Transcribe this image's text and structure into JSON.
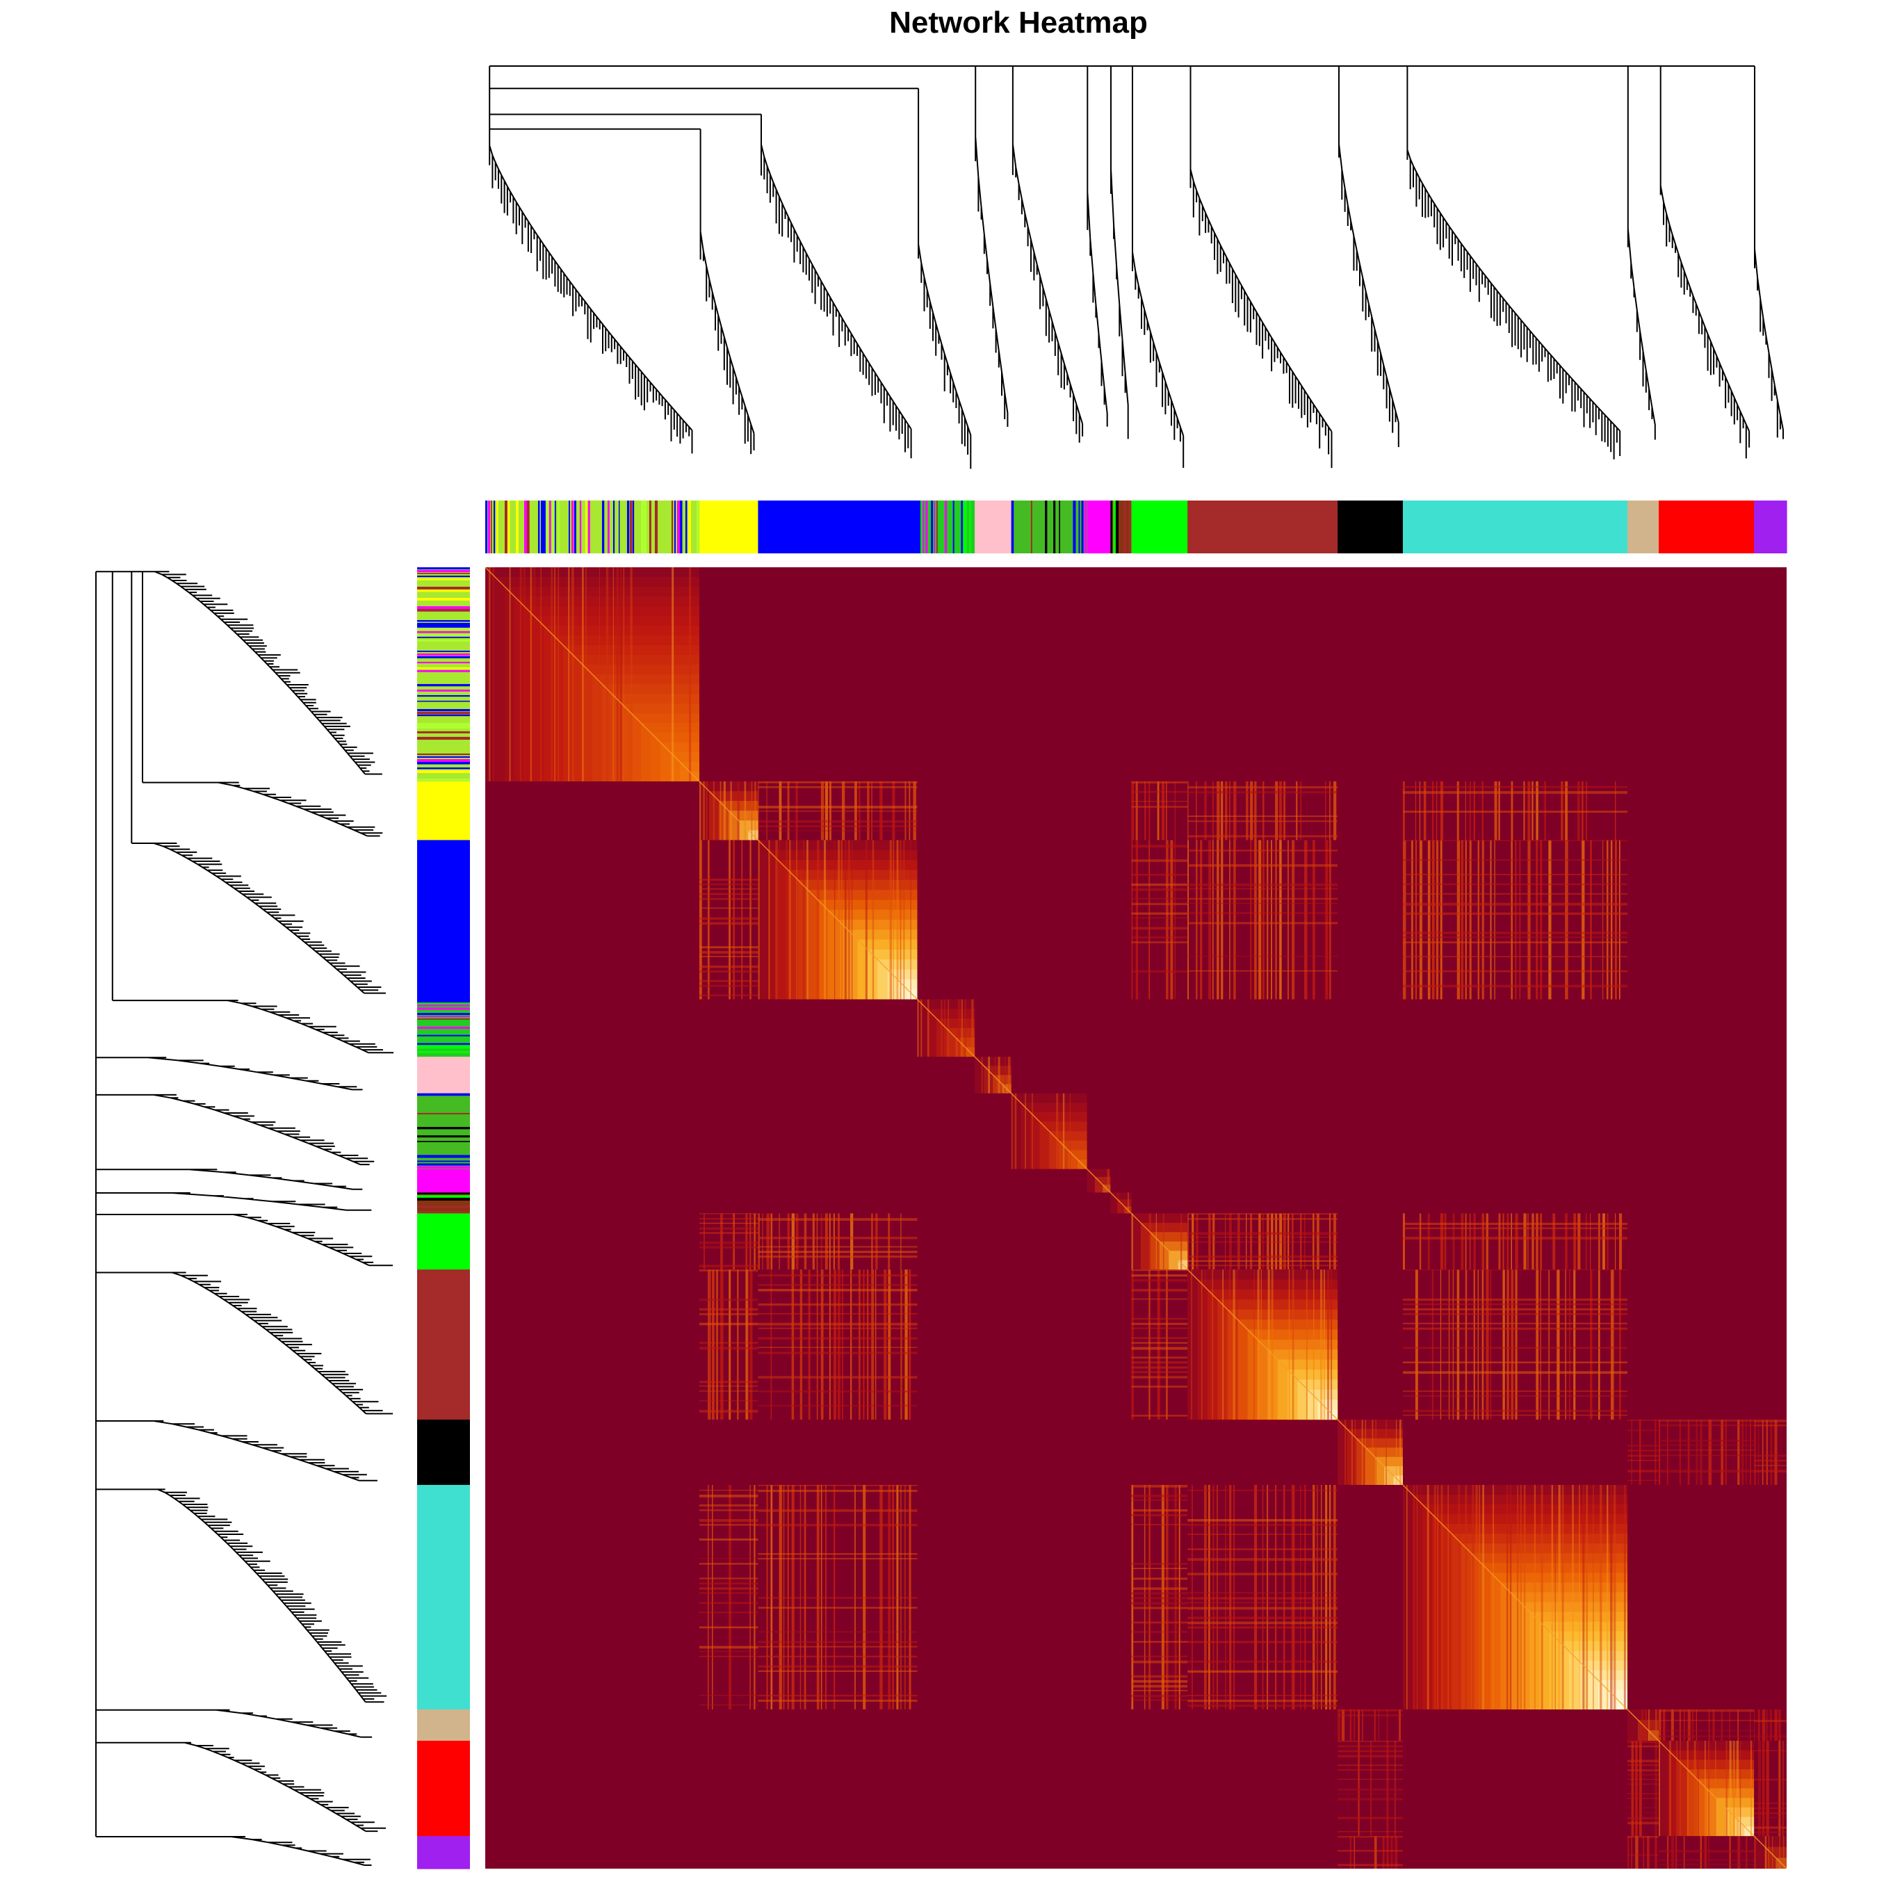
{
  "chart_data": {
    "type": "heatmap",
    "title": "Network Heatmap",
    "xlabel": "",
    "ylabel": "",
    "legend": "none",
    "grid": false,
    "dendrogram_top": true,
    "dendrogram_left": true,
    "color_scale": [
      "#7f0026",
      "#c2170f",
      "#f06b05",
      "#fcc22f",
      "#fffbe0"
    ],
    "modules": [
      {
        "name": "mixed-1",
        "size": 0.164,
        "color": "#a8e830",
        "mixed": [
          "#ffff00",
          "#0000ff",
          "#adff2f",
          "#ff00ff",
          "#a52a2a"
        ]
      },
      {
        "name": "yellow",
        "size": 0.045,
        "color": "#ffff00"
      },
      {
        "name": "blue",
        "size": 0.122,
        "color": "#0000ff"
      },
      {
        "name": "mixed-2",
        "size": 0.044,
        "color": "#22cc22",
        "mixed": [
          "#00ff00",
          "#a52a2a",
          "#0000ff",
          "#ff00ff",
          "#000000"
        ]
      },
      {
        "name": "pink",
        "size": 0.028,
        "color": "#ffc0cb"
      },
      {
        "name": "mixed-3",
        "size": 0.058,
        "color": "#44bb22",
        "mixed": [
          "#00ff00",
          "#a52a2a",
          "#0000ff",
          "#000000",
          "#ff00ff"
        ]
      },
      {
        "name": "magenta",
        "size": 0.018,
        "color": "#ff00ff"
      },
      {
        "name": "mixed-4",
        "size": 0.016,
        "color": "#883311",
        "mixed": [
          "#a52a2a",
          "#00ff00",
          "#000000"
        ]
      },
      {
        "name": "green",
        "size": 0.043,
        "color": "#00ff00"
      },
      {
        "name": "brown",
        "size": 0.115,
        "color": "#a52a2a"
      },
      {
        "name": "black",
        "size": 0.05,
        "color": "#000000"
      },
      {
        "name": "turquoise",
        "size": 0.172,
        "color": "#40e0d0"
      },
      {
        "name": "tan",
        "size": 0.024,
        "color": "#d2b48c"
      },
      {
        "name": "red",
        "size": 0.073,
        "color": "#ff0000"
      },
      {
        "name": "purple",
        "size": 0.025,
        "color": "#a020f0"
      }
    ],
    "correlated_module_groups": [
      [
        "yellow",
        "blue",
        "green",
        "brown",
        "turquoise"
      ],
      [
        "black",
        "red",
        "purple",
        "tan"
      ]
    ]
  }
}
